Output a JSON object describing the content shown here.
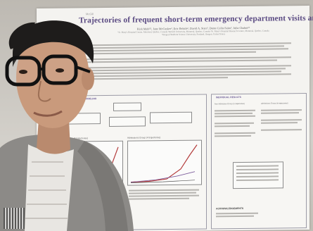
{
  "poster": {
    "title": "Trajectories of frequent short-term emergency department visits among older adults",
    "authors": "Rick Mah¹²³, Jane McCusker², Eric Belzile², David A. Starr³, Dante Colin-Salas², Julia Chabot²³",
    "affiliations": [
      "¹St. Mary's Hospital Centre, Montreal, Quebec, Canada  ²McGill University, Montreal, Quebec, Canada  ³St. Mary's Hospital Research Centre, Montreal, Quebec, Canada",
      "⁴Oregon Health & Science University, Portland, Oregon, United States"
    ],
    "sections": {
      "left": "GROUP-BASED TRAJECTORY MODELING",
      "right": "INDIVIDUAL RESULTS"
    },
    "left_groups": [
      "Non-Emergency Group (5 trajectories)",
      "Admissions Group (4 trajectories)"
    ],
    "right_groups": [
      "Non-Admission Group (5 trajectories)",
      "Admissions Group (4 trajectories)"
    ],
    "acknowledgements": "ACKNOWLEDGEMENTS"
  },
  "colors": {
    "title": "#5a4a82",
    "skin": "#c99a7c",
    "hair": "#1e1c1b",
    "blazer": "#8c8a87",
    "shirt": "#e8e6e2",
    "plot_line_red": "#b33a3a"
  }
}
